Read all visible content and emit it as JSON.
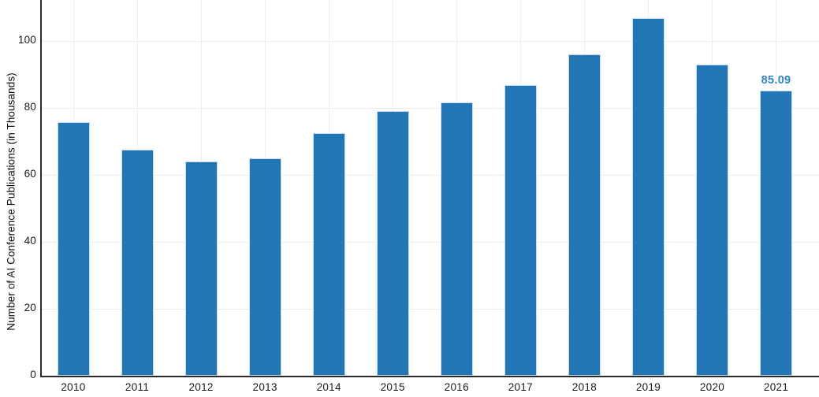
{
  "chart_data": {
    "type": "bar",
    "title": "",
    "categories": [
      "2010",
      "2011",
      "2012",
      "2013",
      "2014",
      "2015",
      "2016",
      "2017",
      "2018",
      "2019",
      "2020",
      "2021"
    ],
    "values": [
      75.8,
      67.5,
      64.0,
      65.0,
      72.4,
      79.1,
      81.7,
      86.9,
      95.9,
      106.8,
      93.0,
      85.09
    ],
    "xlabel": "",
    "ylabel": "Number of AI Conference Publications (in Thousands)",
    "ylim": [
      0,
      112
    ],
    "yticks": [
      0,
      20,
      40,
      60,
      80,
      100
    ],
    "grid": true,
    "legend": "none",
    "bar_color": "#2177b5",
    "bar_edge_color": "#c9dcef",
    "axis_color": "#2b2b2b",
    "gridline_color": "#ededed",
    "annotations": [
      {
        "category": "2021",
        "text": "85.09",
        "color": "#2e86c9"
      }
    ]
  }
}
